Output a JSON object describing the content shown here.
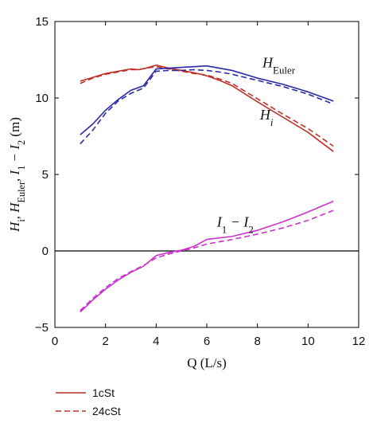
{
  "chart_data": {
    "type": "line",
    "xlabel": "Q (L/s)",
    "ylabel_parts": [
      "H",
      "i",
      ", H",
      "Euler",
      ", I",
      "1",
      " − I",
      "2",
      " (m)"
    ],
    "xlim": [
      0,
      12
    ],
    "ylim": [
      -5,
      15
    ],
    "x_ticks": [
      0,
      2,
      4,
      6,
      8,
      10,
      12
    ],
    "y_ticks": [
      -5,
      0,
      5,
      10,
      15
    ],
    "grid": false,
    "zero_line": true,
    "annotations": [
      {
        "id": "heuler",
        "base": "H",
        "sub": "Euler",
        "x": 8.2,
        "y": 12.0
      },
      {
        "id": "hi",
        "base": "H",
        "sub": "i",
        "x": 8.1,
        "y": 8.6
      },
      {
        "id": "i1i2",
        "parts": [
          "I",
          "1",
          " − I",
          "2"
        ],
        "x": 6.4,
        "y": 1.6
      }
    ],
    "legend": {
      "placement": "bottom-left",
      "entries": [
        {
          "label": "1cSt",
          "color": "#c0312b",
          "style": "solid"
        },
        {
          "label": "24cSt",
          "color": "#c0312b",
          "style": "dashed"
        }
      ]
    },
    "series": [
      {
        "group": "Hi",
        "legend_ref": "1cSt",
        "color": "#c0312b",
        "style": "solid",
        "x": [
          1,
          1.5,
          2,
          2.5,
          3,
          3.3,
          3.6,
          4,
          4.5,
          5,
          5.5,
          6,
          6.5,
          7,
          8,
          9,
          10,
          11
        ],
        "y": [
          11.1,
          11.35,
          11.6,
          11.75,
          11.9,
          11.85,
          11.95,
          12.15,
          11.95,
          11.8,
          11.65,
          11.45,
          11.15,
          10.8,
          9.75,
          8.75,
          7.75,
          6.5
        ]
      },
      {
        "group": "Hi",
        "legend_ref": "24cSt",
        "color": "#c0312b",
        "style": "dashed",
        "x": [
          1,
          1.5,
          2,
          2.5,
          3,
          3.3,
          3.6,
          4,
          4.5,
          5,
          5.5,
          6,
          6.5,
          7,
          8,
          9,
          10,
          11
        ],
        "y": [
          10.95,
          11.3,
          11.55,
          11.7,
          11.85,
          11.85,
          11.95,
          12.05,
          11.9,
          11.75,
          11.6,
          11.5,
          11.25,
          10.95,
          9.95,
          8.95,
          8.0,
          6.85
        ]
      },
      {
        "group": "HEuler",
        "legend_ref": "1cSt",
        "color": "#2a2aa8",
        "style": "solid",
        "x": [
          1,
          1.5,
          2,
          2.5,
          3,
          3.5,
          4,
          4.5,
          5,
          5.5,
          6,
          6.5,
          7,
          8,
          9,
          10,
          11
        ],
        "y": [
          7.6,
          8.3,
          9.2,
          9.9,
          10.5,
          10.8,
          11.9,
          11.95,
          12.0,
          12.05,
          12.1,
          11.95,
          11.8,
          11.3,
          10.9,
          10.4,
          9.8
        ]
      },
      {
        "group": "HEuler",
        "legend_ref": "24cSt",
        "color": "#2a2aa8",
        "style": "dashed",
        "x": [
          1,
          1.5,
          2,
          2.5,
          3,
          3.5,
          4,
          4.5,
          5,
          5.5,
          6,
          6.5,
          7,
          8,
          9,
          10,
          11
        ],
        "y": [
          7.0,
          7.9,
          9.0,
          9.8,
          10.3,
          10.65,
          11.75,
          11.8,
          11.8,
          11.85,
          11.8,
          11.7,
          11.55,
          11.15,
          10.75,
          10.25,
          9.6
        ]
      },
      {
        "group": "I1-I2",
        "legend_ref": "1cSt",
        "color": "#cc33cc",
        "style": "solid",
        "x": [
          1,
          1.5,
          2,
          2.5,
          3,
          3.5,
          4,
          4.5,
          5,
          5.5,
          6,
          7,
          8,
          9,
          10,
          11
        ],
        "y": [
          -4.0,
          -3.2,
          -2.5,
          -1.9,
          -1.4,
          -1.0,
          -0.3,
          -0.1,
          0.05,
          0.3,
          0.75,
          0.95,
          1.35,
          1.9,
          2.55,
          3.25
        ]
      },
      {
        "group": "I1-I2",
        "legend_ref": "24cSt",
        "color": "#cc33cc",
        "style": "dashed",
        "x": [
          1,
          1.5,
          2,
          2.5,
          3,
          3.5,
          4,
          4.5,
          5,
          5.5,
          6,
          7,
          8,
          9,
          10,
          11
        ],
        "y": [
          -3.9,
          -3.1,
          -2.4,
          -1.8,
          -1.35,
          -0.95,
          -0.45,
          -0.2,
          0.0,
          0.2,
          0.45,
          0.75,
          1.1,
          1.5,
          2.0,
          2.65
        ]
      }
    ]
  }
}
